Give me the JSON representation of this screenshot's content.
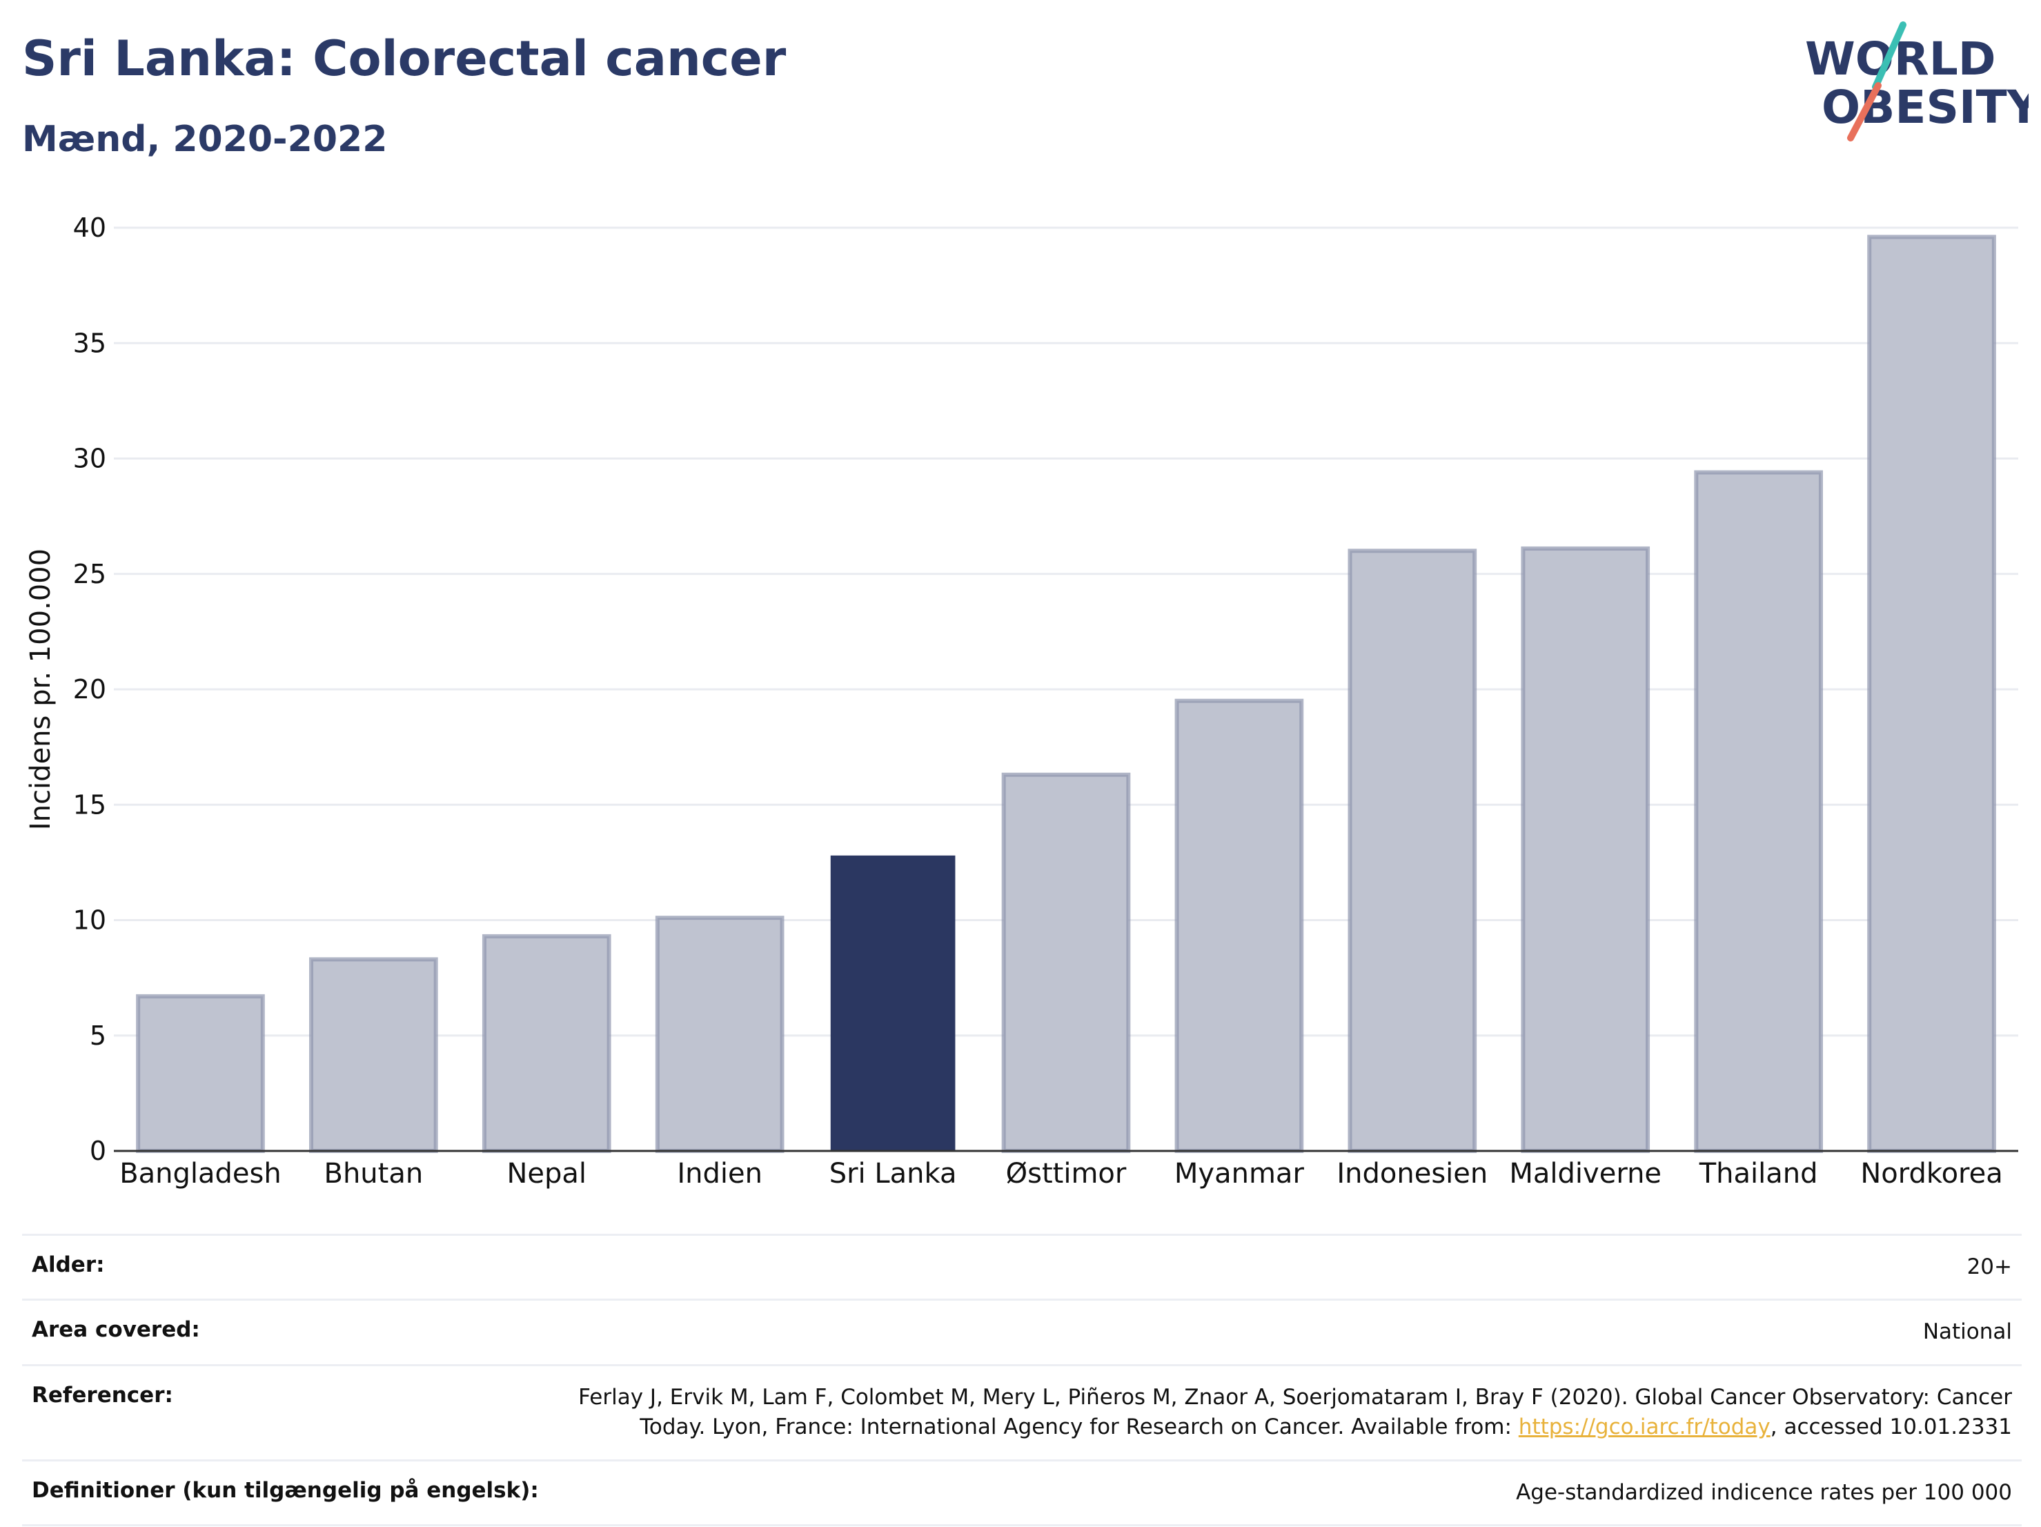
{
  "header": {
    "title": "Sri Lanka: Colorectal cancer",
    "subtitle": "Mænd, 2020-2022"
  },
  "logo": {
    "line1": "WORLD",
    "line2": "OBESITY",
    "accent_colors": [
      "#3bbfb4",
      "#e8705b"
    ]
  },
  "chart_data": {
    "type": "bar",
    "categories": [
      "Bangladesh",
      "Bhutan",
      "Nepal",
      "Indien",
      "Sri Lanka",
      "Østtimor",
      "Myanmar",
      "Indonesien",
      "Maldiverne",
      "Thailand",
      "Nordkorea"
    ],
    "values": [
      6.7,
      8.3,
      9.3,
      10.1,
      12.8,
      16.3,
      19.5,
      26.0,
      26.1,
      29.4,
      39.6
    ],
    "highlight": "Sri Lanka",
    "ylabel": "Incidens pr. 100.000",
    "ylim": [
      0,
      40
    ],
    "yticks": [
      0,
      5,
      10,
      15,
      20,
      25,
      30,
      35,
      40
    ],
    "grid": true,
    "colors": {
      "default": "#bfc3d0",
      "default_stroke": "#8e95ae",
      "highlight": "#2b3761"
    }
  },
  "info": {
    "rows": [
      {
        "label": "Alder:",
        "value": "20+"
      },
      {
        "label": "Area covered:",
        "value": "National"
      },
      {
        "label": "Referencer:",
        "value_line1": "Ferlay J, Ervik M, Lam F, Colombet M, Mery L, Piñeros M, Znaor A, Soerjomataram I, Bray F (2020). Global Cancer Observatory: Cancer",
        "value_line2_pre": "Today. Lyon, France: International Agency for Research on Cancer. Available from: ",
        "link_text": "https://gco.iarc.fr/today",
        "value_line2_post": ", accessed 10.01.2331"
      },
      {
        "label": "Definitioner (kun tilgængelig på engelsk):",
        "value": "Age-standardized indicence rates per 100 000"
      }
    ]
  }
}
